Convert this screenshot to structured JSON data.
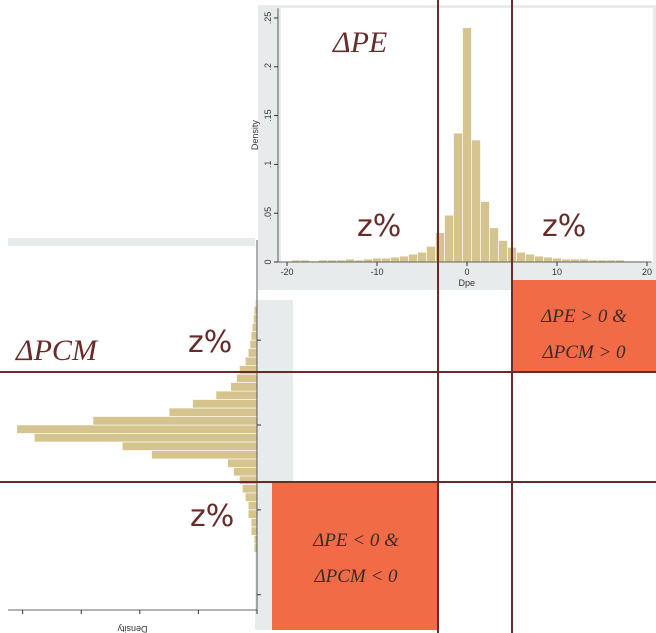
{
  "chart_data": [
    {
      "type": "histogram",
      "orientation": "vertical",
      "color": "#d6c48f",
      "x_label": "Dpe",
      "y_label": "Density",
      "bins": [
        -19.5,
        -18.5,
        -17.5,
        -16.5,
        -15.5,
        -14.5,
        -13.5,
        -12.5,
        -11.5,
        -10.5,
        -9.5,
        -8.5,
        -7.5,
        -6.5,
        -5.5,
        -4.5,
        -3.5,
        -2.5,
        -1.5,
        -0.5,
        0.5,
        1.5,
        2.5,
        3.5,
        4.5,
        5.5,
        6.5,
        7.5,
        8.5,
        9.5,
        10.5,
        11.5,
        12.5,
        13.5,
        14.5,
        15.5,
        16.5,
        17.5,
        18.5,
        19.5
      ],
      "values": [
        0.002,
        0.002,
        0.001,
        0.002,
        0.002,
        0.002,
        0.003,
        0.002,
        0.003,
        0.004,
        0.004,
        0.005,
        0.006,
        0.008,
        0.01,
        0.016,
        0.03,
        0.048,
        0.132,
        0.24,
        0.125,
        0.062,
        0.035,
        0.022,
        0.015,
        0.01,
        0.008,
        0.006,
        0.005,
        0.004,
        0.003,
        0.003,
        0.003,
        0.002,
        0.002,
        0.002,
        0.002,
        0.001,
        0.001
      ],
      "xlim": [
        -21,
        20.5
      ],
      "ylim": [
        0,
        0.26
      ],
      "xticks": [
        -20,
        -10,
        0,
        10,
        20
      ],
      "yticks": [
        0,
        {
          "value": 0.05,
          "label": ".05"
        },
        {
          "value": 0.1,
          "label": ".1"
        },
        {
          "value": 0.15,
          "label": ".15"
        },
        {
          "value": 0.2,
          "label": ".2"
        },
        {
          "value": 0.25,
          "label": ".25"
        }
      ]
    },
    {
      "type": "histogram",
      "orientation": "horizontal",
      "color": "#d6c48f",
      "x_label": "Density",
      "bins": [
        -0.75,
        -0.7,
        -0.65,
        -0.6,
        -0.55,
        -0.5,
        -0.45,
        -0.4,
        -0.35,
        -0.3,
        -0.25,
        -0.2,
        -0.15,
        -0.1,
        -0.05,
        0,
        0.05,
        0.1,
        0.15,
        0.2,
        0.25,
        0.3,
        0.35,
        0.4,
        0.45,
        0.5,
        0.55,
        0.6,
        0.65,
        0.7
      ],
      "values": [
        0.05,
        0.05,
        0.1,
        0.1,
        0.15,
        0.15,
        0.2,
        0.25,
        0.3,
        0.4,
        0.5,
        1.8,
        2.3,
        3.8,
        4.1,
        2.8,
        1.5,
        1.1,
        0.7,
        0.45,
        0.35,
        0.3,
        0.2,
        0.15,
        0.12,
        0.1,
        0.08,
        0.06,
        0.05
      ],
      "xlim": [
        0,
        4.25
      ],
      "ylim": [
        -1.09,
        1.09
      ],
      "xticks": [
        0,
        1,
        2,
        3,
        4
      ],
      "yticks": [
        -1,
        -0.5,
        0,
        0.5
      ]
    }
  ],
  "annotations": {
    "pe_label": "ΔPE",
    "pcm_label": "ΔPCM",
    "z_labels": [
      "z%",
      "z%",
      "z%",
      "z%"
    ],
    "quadrant_positive": [
      "ΔPE > 0 &",
      "ΔPCM > 0"
    ],
    "quadrant_negative": [
      "ΔPE < 0 &",
      "ΔPCM < 0"
    ]
  }
}
